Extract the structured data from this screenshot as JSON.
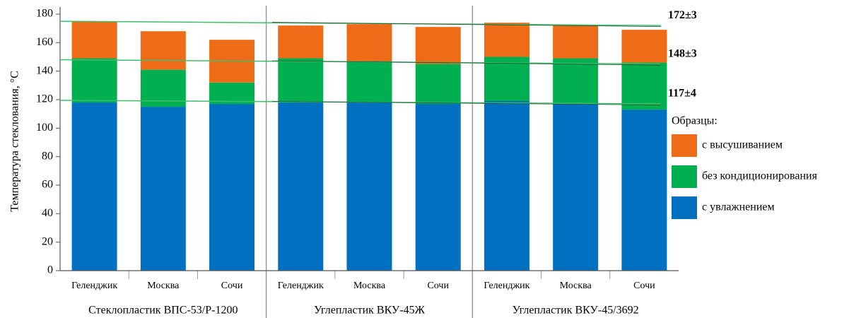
{
  "chart_data": {
    "type": "bar",
    "stacked": true,
    "y_label": "Температура стеклования, °С",
    "categories": [
      "Геленджик",
      "Москва",
      "Сочи",
      "Геленджик",
      "Москва",
      "Сочи",
      "Геленджик",
      "Москва",
      "Сочи"
    ],
    "group_labels": [
      "Стеклопластик ВПС-53/Р-1200",
      "Углепластик ВКУ-45Ж",
      "Углепластик ВКУ-45/3692"
    ],
    "series": [
      {
        "name": "с  увлажнением",
        "color": "#0070c0",
        "values": [
          118,
          115,
          117,
          118,
          118,
          117,
          119,
          117,
          113
        ]
      },
      {
        "name": "без кондиционирования",
        "color": "#00b050",
        "values": [
          31,
          26,
          15,
          31,
          29,
          28,
          31,
          32,
          33
        ]
      },
      {
        "name": "с высушиванием",
        "color": "#ee6c17",
        "values": [
          26,
          27,
          30,
          23,
          26,
          26,
          24,
          23,
          23
        ]
      }
    ],
    "reference_lines": [
      {
        "label": "172±3",
        "color": "#ee6c17",
        "values": [
          175,
          172
        ]
      },
      {
        "label": "148±3",
        "color": "#00b050",
        "values": [
          148,
          145
        ]
      },
      {
        "label": "117±4",
        "color": "#1f6fe0",
        "values": [
          119.5,
          117
        ]
      }
    ],
    "legend_title": "Образцы:",
    "legend": "right",
    "ylim": [
      0,
      180
    ],
    "yticks": [
      0,
      20,
      40,
      60,
      80,
      100,
      120,
      140,
      160,
      180
    ]
  }
}
